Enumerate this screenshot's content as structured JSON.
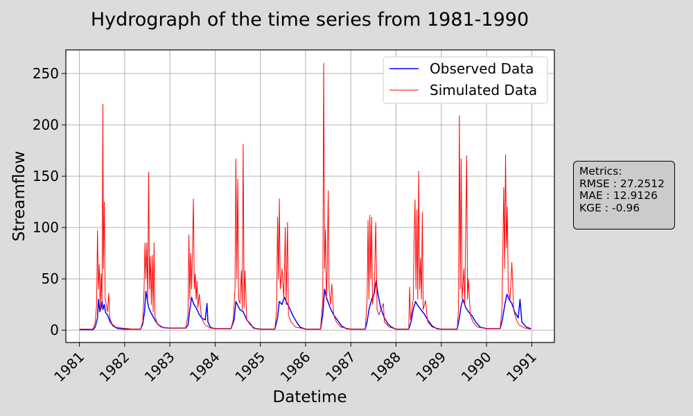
{
  "chart_data": {
    "type": "line",
    "title": "Hydrograph of the time series from 1981-1990",
    "xlabel": "Datetime",
    "ylabel": "Streamflow",
    "xlim": [
      1980.7,
      1991.5
    ],
    "ylim": [
      -12,
      273
    ],
    "x_ticks": [
      1981,
      1982,
      1983,
      1984,
      1985,
      1986,
      1987,
      1988,
      1989,
      1990,
      1991
    ],
    "y_ticks": [
      0,
      50,
      100,
      150,
      200,
      250
    ],
    "grid": true,
    "legend_position": "top-right",
    "series": [
      {
        "name": "Observed Data",
        "color": "#0000ff",
        "points": [
          [
            1981.0,
            0.5
          ],
          [
            1981.3,
            0.5
          ],
          [
            1981.35,
            3
          ],
          [
            1981.4,
            12
          ],
          [
            1981.42,
            30
          ],
          [
            1981.45,
            18
          ],
          [
            1981.48,
            22
          ],
          [
            1981.5,
            28
          ],
          [
            1981.52,
            20
          ],
          [
            1981.55,
            25
          ],
          [
            1981.58,
            17
          ],
          [
            1981.62,
            15
          ],
          [
            1981.68,
            8
          ],
          [
            1981.75,
            4
          ],
          [
            1981.85,
            1.5
          ],
          [
            1982.0,
            1
          ],
          [
            1982.35,
            1
          ],
          [
            1982.4,
            6
          ],
          [
            1982.44,
            18
          ],
          [
            1982.47,
            38
          ],
          [
            1982.5,
            30
          ],
          [
            1982.53,
            22
          ],
          [
            1982.57,
            18
          ],
          [
            1982.62,
            14
          ],
          [
            1982.68,
            9
          ],
          [
            1982.75,
            5
          ],
          [
            1982.85,
            2.5
          ],
          [
            1983.0,
            2
          ],
          [
            1983.35,
            2
          ],
          [
            1983.4,
            5
          ],
          [
            1983.44,
            20
          ],
          [
            1983.48,
            32
          ],
          [
            1983.52,
            26
          ],
          [
            1983.58,
            22
          ],
          [
            1983.64,
            16
          ],
          [
            1983.7,
            12
          ],
          [
            1983.78,
            10
          ],
          [
            1983.82,
            26
          ],
          [
            1983.84,
            8
          ],
          [
            1983.9,
            2.5
          ],
          [
            1984.0,
            1.5
          ],
          [
            1984.35,
            1.5
          ],
          [
            1984.42,
            10
          ],
          [
            1984.46,
            28
          ],
          [
            1984.5,
            24
          ],
          [
            1984.55,
            20
          ],
          [
            1984.62,
            18
          ],
          [
            1984.7,
            10
          ],
          [
            1984.78,
            6
          ],
          [
            1984.85,
            2
          ],
          [
            1985.0,
            1
          ],
          [
            1985.32,
            1
          ],
          [
            1985.38,
            12
          ],
          [
            1985.42,
            28
          ],
          [
            1985.48,
            25
          ],
          [
            1985.53,
            32
          ],
          [
            1985.58,
            27
          ],
          [
            1985.64,
            22
          ],
          [
            1985.72,
            14
          ],
          [
            1985.8,
            8
          ],
          [
            1985.88,
            3
          ],
          [
            1986.0,
            1
          ],
          [
            1986.33,
            1
          ],
          [
            1986.38,
            15
          ],
          [
            1986.42,
            40
          ],
          [
            1986.46,
            32
          ],
          [
            1986.5,
            27
          ],
          [
            1986.56,
            20
          ],
          [
            1986.62,
            15
          ],
          [
            1986.7,
            10
          ],
          [
            1986.8,
            4
          ],
          [
            1986.9,
            1.5
          ],
          [
            1987.0,
            1
          ],
          [
            1987.32,
            1
          ],
          [
            1987.36,
            8
          ],
          [
            1987.4,
            20
          ],
          [
            1987.46,
            30
          ],
          [
            1987.52,
            36
          ],
          [
            1987.56,
            48
          ],
          [
            1987.6,
            35
          ],
          [
            1987.66,
            22
          ],
          [
            1987.74,
            12
          ],
          [
            1987.82,
            6
          ],
          [
            1987.9,
            3
          ],
          [
            1988.0,
            1
          ],
          [
            1988.28,
            1
          ],
          [
            1988.33,
            8
          ],
          [
            1988.38,
            20
          ],
          [
            1988.43,
            28
          ],
          [
            1988.48,
            24
          ],
          [
            1988.55,
            20
          ],
          [
            1988.62,
            16
          ],
          [
            1988.7,
            10
          ],
          [
            1988.8,
            4
          ],
          [
            1988.9,
            1.5
          ],
          [
            1989.0,
            1
          ],
          [
            1989.35,
            1
          ],
          [
            1989.4,
            12
          ],
          [
            1989.44,
            24
          ],
          [
            1989.48,
            30
          ],
          [
            1989.54,
            22
          ],
          [
            1989.6,
            18
          ],
          [
            1989.68,
            14
          ],
          [
            1989.76,
            8
          ],
          [
            1989.86,
            3
          ],
          [
            1990.0,
            1.5
          ],
          [
            1990.3,
            1.5
          ],
          [
            1990.35,
            10
          ],
          [
            1990.4,
            24
          ],
          [
            1990.45,
            35
          ],
          [
            1990.5,
            30
          ],
          [
            1990.56,
            26
          ],
          [
            1990.62,
            18
          ],
          [
            1990.7,
            12
          ],
          [
            1990.74,
            30
          ],
          [
            1990.78,
            8
          ],
          [
            1990.88,
            3
          ],
          [
            1990.98,
            1.5
          ]
        ]
      },
      {
        "name": "Simulated Data",
        "color": "#ff0000",
        "points": [
          [
            1981.0,
            1
          ],
          [
            1981.3,
            1
          ],
          [
            1981.35,
            8
          ],
          [
            1981.38,
            25
          ],
          [
            1981.4,
            97
          ],
          [
            1981.42,
            40
          ],
          [
            1981.44,
            64
          ],
          [
            1981.46,
            20
          ],
          [
            1981.48,
            55
          ],
          [
            1981.5,
            28
          ],
          [
            1981.52,
            220
          ],
          [
            1981.53,
            60
          ],
          [
            1981.55,
            125
          ],
          [
            1981.57,
            30
          ],
          [
            1981.59,
            26
          ],
          [
            1981.62,
            18
          ],
          [
            1981.65,
            36
          ],
          [
            1981.67,
            12
          ],
          [
            1981.72,
            6
          ],
          [
            1981.8,
            3
          ],
          [
            1981.95,
            2
          ],
          [
            1982.2,
            1
          ],
          [
            1982.35,
            1
          ],
          [
            1982.4,
            8
          ],
          [
            1982.43,
            40
          ],
          [
            1982.45,
            85
          ],
          [
            1982.47,
            50
          ],
          [
            1982.49,
            85
          ],
          [
            1982.51,
            30
          ],
          [
            1982.53,
            154
          ],
          [
            1982.55,
            40
          ],
          [
            1982.57,
            72
          ],
          [
            1982.59,
            25
          ],
          [
            1982.61,
            73
          ],
          [
            1982.63,
            18
          ],
          [
            1982.65,
            85
          ],
          [
            1982.67,
            14
          ],
          [
            1982.72,
            6
          ],
          [
            1982.8,
            3
          ],
          [
            1983.0,
            2
          ],
          [
            1983.35,
            2
          ],
          [
            1983.4,
            15
          ],
          [
            1983.42,
            93
          ],
          [
            1983.44,
            30
          ],
          [
            1983.46,
            75
          ],
          [
            1983.48,
            40
          ],
          [
            1983.5,
            80
          ],
          [
            1983.52,
            128
          ],
          [
            1983.54,
            40
          ],
          [
            1983.56,
            55
          ],
          [
            1983.58,
            30
          ],
          [
            1983.6,
            48
          ],
          [
            1983.62,
            22
          ],
          [
            1983.65,
            35
          ],
          [
            1983.7,
            12
          ],
          [
            1983.78,
            5
          ],
          [
            1983.9,
            2
          ],
          [
            1984.0,
            1.5
          ],
          [
            1984.35,
            1.5
          ],
          [
            1984.4,
            10
          ],
          [
            1984.44,
            40
          ],
          [
            1984.46,
            167
          ],
          [
            1984.48,
            50
          ],
          [
            1984.5,
            147
          ],
          [
            1984.52,
            30
          ],
          [
            1984.55,
            26
          ],
          [
            1984.58,
            58
          ],
          [
            1984.6,
            20
          ],
          [
            1984.62,
            181
          ],
          [
            1984.64,
            22
          ],
          [
            1984.66,
            58
          ],
          [
            1984.7,
            10
          ],
          [
            1984.78,
            5
          ],
          [
            1984.9,
            1.5
          ],
          [
            1985.0,
            1
          ],
          [
            1985.32,
            1
          ],
          [
            1985.36,
            20
          ],
          [
            1985.38,
            110
          ],
          [
            1985.4,
            50
          ],
          [
            1985.42,
            128
          ],
          [
            1985.44,
            40
          ],
          [
            1985.48,
            60
          ],
          [
            1985.52,
            30
          ],
          [
            1985.55,
            100
          ],
          [
            1985.57,
            25
          ],
          [
            1985.6,
            105
          ],
          [
            1985.62,
            15
          ],
          [
            1985.68,
            8
          ],
          [
            1985.78,
            3
          ],
          [
            1986.0,
            1
          ],
          [
            1986.33,
            1
          ],
          [
            1986.38,
            30
          ],
          [
            1986.4,
            260
          ],
          [
            1986.42,
            60
          ],
          [
            1986.44,
            98
          ],
          [
            1986.46,
            30
          ],
          [
            1986.48,
            60
          ],
          [
            1986.5,
            136
          ],
          [
            1986.52,
            40
          ],
          [
            1986.55,
            25
          ],
          [
            1986.58,
            45
          ],
          [
            1986.62,
            15
          ],
          [
            1986.68,
            8
          ],
          [
            1986.78,
            3
          ],
          [
            1987.0,
            1
          ],
          [
            1987.32,
            1
          ],
          [
            1987.36,
            30
          ],
          [
            1987.38,
            107
          ],
          [
            1987.4,
            30
          ],
          [
            1987.42,
            112
          ],
          [
            1987.44,
            50
          ],
          [
            1987.46,
            110
          ],
          [
            1987.48,
            25
          ],
          [
            1987.52,
            40
          ],
          [
            1987.55,
            105
          ],
          [
            1987.58,
            20
          ],
          [
            1987.62,
            15
          ],
          [
            1987.72,
            26
          ],
          [
            1987.74,
            8
          ],
          [
            1987.85,
            3
          ],
          [
            1988.0,
            1
          ],
          [
            1988.28,
            1
          ],
          [
            1988.3,
            42
          ],
          [
            1988.32,
            10
          ],
          [
            1988.38,
            30
          ],
          [
            1988.4,
            89
          ],
          [
            1988.42,
            127
          ],
          [
            1988.44,
            40
          ],
          [
            1988.46,
            117
          ],
          [
            1988.48,
            30
          ],
          [
            1988.5,
            155
          ],
          [
            1988.52,
            40
          ],
          [
            1988.54,
            70
          ],
          [
            1988.56,
            30
          ],
          [
            1988.58,
            115
          ],
          [
            1988.6,
            20
          ],
          [
            1988.65,
            29
          ],
          [
            1988.7,
            8
          ],
          [
            1988.8,
            3
          ],
          [
            1989.0,
            1
          ],
          [
            1989.35,
            1
          ],
          [
            1989.38,
            20
          ],
          [
            1989.4,
            209
          ],
          [
            1989.42,
            40
          ],
          [
            1989.44,
            167
          ],
          [
            1989.46,
            30
          ],
          [
            1989.5,
            60
          ],
          [
            1989.52,
            25
          ],
          [
            1989.56,
            170
          ],
          [
            1989.58,
            30
          ],
          [
            1989.6,
            50
          ],
          [
            1989.64,
            15
          ],
          [
            1989.7,
            8
          ],
          [
            1989.8,
            3
          ],
          [
            1990.0,
            1.5
          ],
          [
            1990.3,
            1.5
          ],
          [
            1990.34,
            20
          ],
          [
            1990.38,
            139
          ],
          [
            1990.4,
            60
          ],
          [
            1990.42,
            171
          ],
          [
            1990.44,
            80
          ],
          [
            1990.46,
            120
          ],
          [
            1990.48,
            40
          ],
          [
            1990.52,
            30
          ],
          [
            1990.56,
            66
          ],
          [
            1990.6,
            20
          ],
          [
            1990.66,
            10
          ],
          [
            1990.72,
            5
          ],
          [
            1990.85,
            2
          ],
          [
            1990.98,
            1
          ]
        ]
      }
    ]
  },
  "metrics": {
    "heading": "Metrics:",
    "rmse": "RMSE : 27.2512",
    "mae": "MAE : 12.9126",
    "kge": "KGE : -0.96"
  }
}
